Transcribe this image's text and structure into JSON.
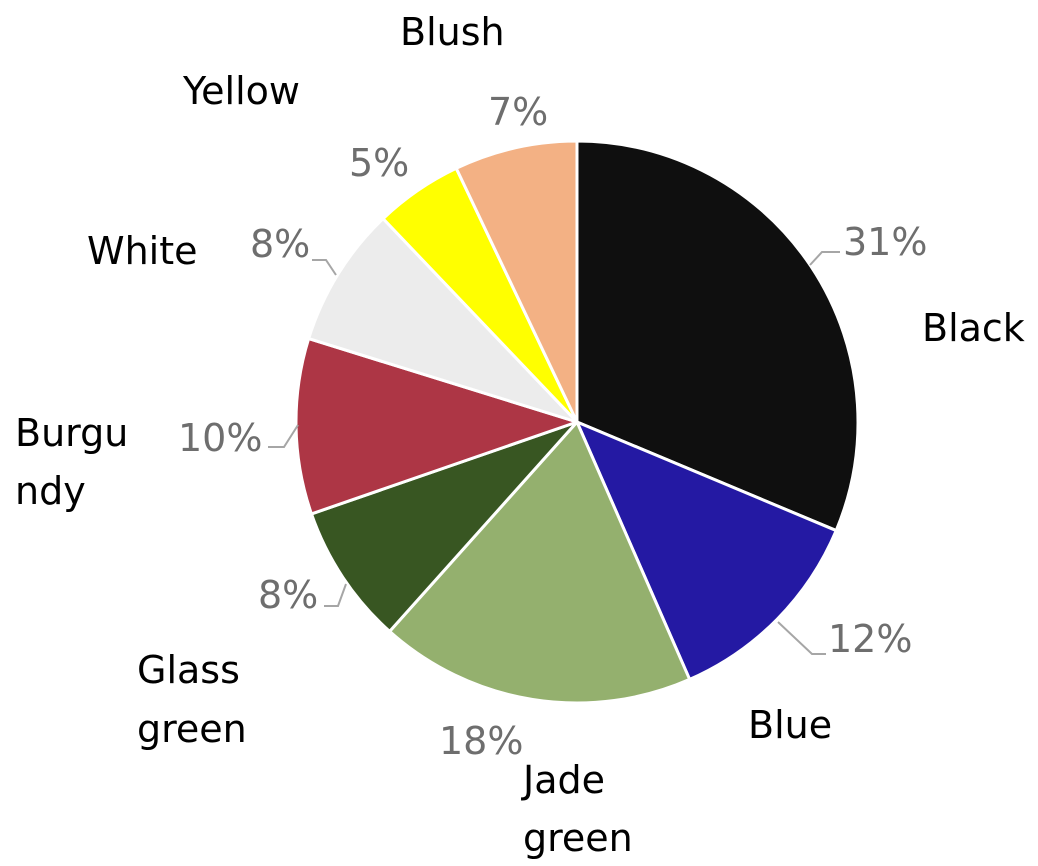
{
  "chart_data": {
    "type": "pie",
    "start_angle_deg": 0,
    "direction": "clockwise",
    "slices": [
      {
        "label": "Black",
        "value": 31,
        "value_label": "31%",
        "color": "#0f0f0f"
      },
      {
        "label": "Blue",
        "value": 12,
        "value_label": "12%",
        "color": "#2419a3"
      },
      {
        "label": "Jade green",
        "value": 18,
        "value_label": "18%",
        "color": "#94b06e"
      },
      {
        "label": "Glass green",
        "value": 8,
        "value_label": "8%",
        "color": "#385622"
      },
      {
        "label": "Burgundy",
        "value": 10,
        "value_label": "10%",
        "color": "#ad3645"
      },
      {
        "label": "White",
        "value": 8,
        "value_label": "8%",
        "color": "#ececec"
      },
      {
        "label": "Yellow",
        "value": 5,
        "value_label": "5%",
        "color": "#ffff00"
      },
      {
        "label": "Blush",
        "value": 7,
        "value_label": "7%",
        "color": "#f3b184"
      }
    ]
  }
}
